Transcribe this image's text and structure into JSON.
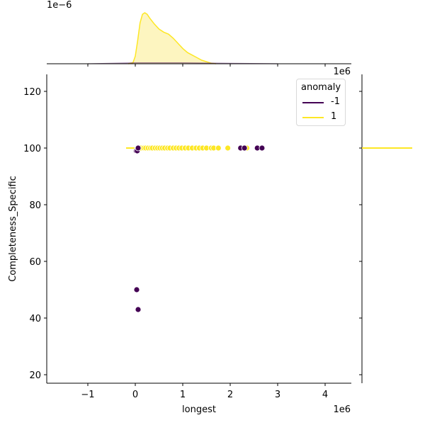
{
  "chart_data": {
    "type": "scatter",
    "subtype": "jointplot",
    "title": "",
    "xlabel": "longest",
    "ylabel": "Completeness_Specific",
    "x_offset_label": "1e6",
    "top_marginal_offset_label": "1e−6",
    "xlim": [
      -1.85,
      4.55
    ],
    "ylim": [
      16,
      126
    ],
    "x_ticks": [
      -1,
      0,
      1,
      2,
      3,
      4
    ],
    "x_tick_labels": [
      "−1",
      "0",
      "1",
      "2",
      "3",
      "4"
    ],
    "y_ticks": [
      20,
      40,
      60,
      80,
      100,
      120
    ],
    "y_tick_labels": [
      "20",
      "40",
      "60",
      "80",
      "100",
      "120"
    ],
    "grid": false,
    "legend": {
      "title": "anomaly",
      "position": "upper right",
      "entries": [
        {
          "label": "-1",
          "color": "#440154"
        },
        {
          "label": "1",
          "color": "#fde725"
        }
      ]
    },
    "series": [
      {
        "name": "1",
        "color": "#fde725",
        "points_x_1e6": [
          0.05,
          0.12,
          0.18,
          0.22,
          0.27,
          0.32,
          0.36,
          0.42,
          0.47,
          0.52,
          0.57,
          0.62,
          0.68,
          0.73,
          0.8,
          0.86,
          0.92,
          0.98,
          1.05,
          1.12,
          1.2,
          1.28,
          1.35,
          1.42,
          1.5,
          1.6,
          1.65,
          1.75,
          1.95,
          2.35
        ],
        "points_y": [
          100,
          100,
          100,
          100,
          100,
          100,
          100,
          100,
          100,
          100,
          100,
          100,
          100,
          100,
          100,
          100,
          100,
          100,
          100,
          100,
          100,
          100,
          100,
          100,
          100,
          100,
          100,
          100,
          100,
          100
        ]
      },
      {
        "name": "-1",
        "color": "#440154",
        "points_x_1e6": [
          0.02,
          0.04,
          0.06,
          2.22,
          2.3,
          2.57,
          2.67,
          0.03,
          0.06
        ],
        "points_y": [
          99,
          99,
          100,
          100,
          100,
          100,
          100,
          50,
          43
        ]
      }
    ],
    "top_marginal": {
      "type": "kde",
      "series": [
        {
          "name": "1",
          "color": "#fde725",
          "fill": "#fdf5c0",
          "x_1e6": [
            -0.15,
            -0.05,
            0.0,
            0.05,
            0.1,
            0.15,
            0.2,
            0.25,
            0.3,
            0.4,
            0.5,
            0.6,
            0.7,
            0.8,
            0.9,
            1.0,
            1.1,
            1.2,
            1.3,
            1.4,
            1.5,
            1.6,
            1.7
          ],
          "density_rel": [
            0.0,
            0.02,
            0.15,
            0.45,
            0.8,
            0.97,
            1.0,
            0.97,
            0.9,
            0.78,
            0.68,
            0.62,
            0.58,
            0.5,
            0.4,
            0.3,
            0.22,
            0.17,
            0.12,
            0.07,
            0.04,
            0.01,
            0.0
          ]
        },
        {
          "name": "-1",
          "color": "#440154",
          "x_1e6": [
            -1.0,
            0.0,
            1.0,
            2.0,
            3.0
          ],
          "density_rel": [
            0.0,
            0.02,
            0.02,
            0.01,
            0.0
          ]
        }
      ]
    },
    "right_marginal": {
      "type": "kde",
      "series": [
        {
          "name": "1",
          "color": "#fde725",
          "y": 100,
          "note": "degenerate (all values 100) rendered as horizontal line"
        }
      ]
    }
  }
}
